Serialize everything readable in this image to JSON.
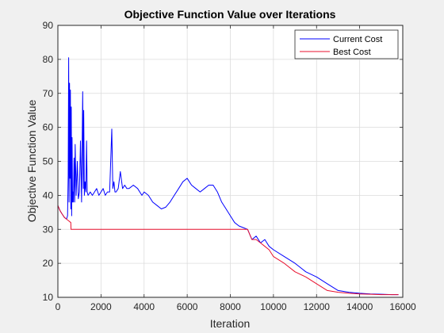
{
  "chart_data": {
    "type": "line",
    "title": "Objective Function Value over Iterations",
    "xlabel": "Iteration",
    "ylabel": "Objective Function Value",
    "xlim": [
      0,
      16000
    ],
    "ylim": [
      10,
      90
    ],
    "xticks": [
      0,
      2000,
      4000,
      6000,
      8000,
      10000,
      12000,
      14000,
      16000
    ],
    "yticks": [
      10,
      20,
      30,
      40,
      50,
      60,
      70,
      80,
      90
    ],
    "grid": true,
    "legend_position": "top-right",
    "series": [
      {
        "name": "Current Cost",
        "color": "#0000ff",
        "x": [
          0,
          100,
          200,
          300,
          400,
          450,
          480,
          500,
          520,
          540,
          560,
          580,
          600,
          620,
          640,
          660,
          680,
          700,
          720,
          750,
          780,
          800,
          850,
          900,
          950,
          1000,
          1050,
          1100,
          1150,
          1180,
          1200,
          1230,
          1260,
          1300,
          1330,
          1360,
          1400,
          1500,
          1600,
          1700,
          1800,
          1900,
          2000,
          2100,
          2200,
          2300,
          2400,
          2500,
          2550,
          2600,
          2650,
          2700,
          2800,
          2900,
          3000,
          3100,
          3200,
          3300,
          3500,
          3700,
          3900,
          4000,
          4200,
          4400,
          4600,
          4800,
          5000,
          5200,
          5400,
          5600,
          5800,
          6000,
          6100,
          6200,
          6400,
          6600,
          6800,
          7000,
          7200,
          7400,
          7600,
          7800,
          8000,
          8200,
          8400,
          8600,
          8800,
          9000,
          9200,
          9400,
          9600,
          9800,
          10000,
          10500,
          11000,
          11500,
          12000,
          12500,
          13000,
          13500,
          14000,
          14500,
          15000,
          15500,
          15800
        ],
        "y": [
          37,
          35.5,
          34.5,
          33.5,
          33,
          34,
          46,
          80.5,
          38,
          73,
          45,
          71,
          36,
          66,
          34,
          57,
          38,
          41,
          38,
          51,
          38,
          55,
          40,
          50,
          39,
          41,
          56,
          38,
          70.5,
          42,
          65,
          40,
          44,
          41,
          56,
          41,
          40,
          41,
          40,
          41,
          42,
          40,
          41,
          42,
          40,
          41,
          41,
          59.5,
          42,
          44,
          41,
          41,
          42,
          47,
          42,
          43,
          42,
          42,
          43,
          42,
          40,
          41,
          40,
          38,
          37,
          36,
          36.5,
          38,
          40,
          42,
          44,
          45,
          44,
          43,
          42,
          41,
          42,
          43,
          43,
          41,
          38,
          36,
          34,
          32,
          31,
          30.5,
          30,
          27,
          28,
          26,
          27,
          25,
          24,
          22,
          20,
          17.5,
          16,
          14,
          12,
          11.5,
          11.2,
          11,
          10.9,
          10.8,
          10.8
        ]
      },
      {
        "name": "Best Cost",
        "color": "#e8102e",
        "x": [
          0,
          100,
          200,
          300,
          400,
          500,
          600,
          610,
          1000,
          2000,
          4000,
          6000,
          8000,
          8500,
          8800,
          9000,
          9200,
          9400,
          9600,
          9800,
          10000,
          10500,
          11000,
          11500,
          12000,
          12500,
          13000,
          13500,
          14000,
          14500,
          15000,
          15500,
          15800
        ],
        "y": [
          37,
          35.5,
          34.5,
          33.5,
          33,
          32.5,
          32,
          30,
          30,
          30,
          30,
          30,
          30,
          30,
          30,
          27,
          27,
          26,
          25,
          24,
          22,
          20,
          17.5,
          16,
          14,
          12,
          11.5,
          11.2,
          11,
          10.9,
          10.8,
          10.8,
          10.8
        ]
      }
    ]
  }
}
